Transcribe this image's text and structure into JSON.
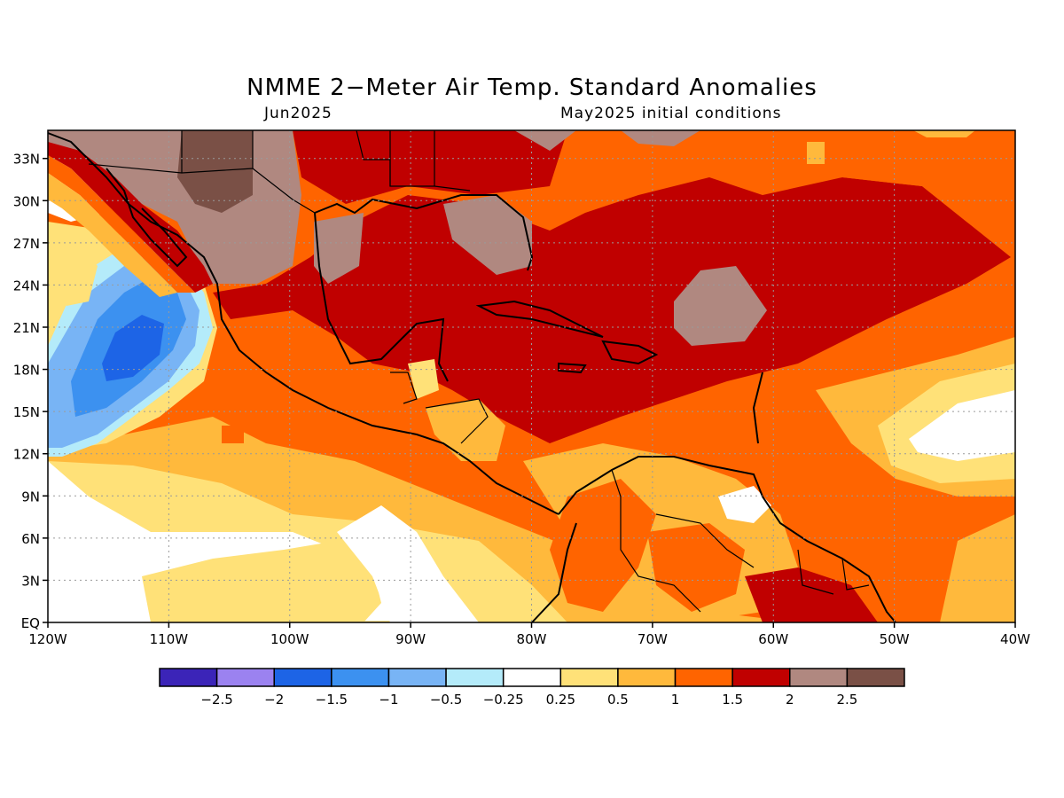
{
  "title": "NMME 2−Meter Air Temp. Standard Anomalies",
  "subtitle_left": "Jun2025",
  "subtitle_right": "May2025 initial conditions",
  "map": {
    "extent": {
      "lon": [
        -120,
        -40
      ],
      "lat": [
        0,
        35
      ]
    },
    "lat_ticks": [
      "33N",
      "30N",
      "27N",
      "24N",
      "21N",
      "18N",
      "15N",
      "12N",
      "9N",
      "6N",
      "3N",
      "EQ"
    ],
    "lon_ticks": [
      "120W",
      "110W",
      "100W",
      "90W",
      "80W",
      "70W",
      "60W",
      "50W",
      "40W"
    ]
  },
  "legend": {
    "colors": [
      "#3b24b8",
      "#9b82f0",
      "#1d64e6",
      "#3c91f0",
      "#78b4f5",
      "#b4ebfa",
      "#ffffff",
      "#ffe178",
      "#ffb93c",
      "#ff6400",
      "#c00000",
      "#b08880",
      "#7a5046"
    ],
    "labels": [
      "−2.5",
      "−2",
      "−1.5",
      "−1",
      "−0.5",
      "−0.25",
      "0.25",
      "0.5",
      "1",
      "1.5",
      "2",
      "2.5"
    ]
  }
}
